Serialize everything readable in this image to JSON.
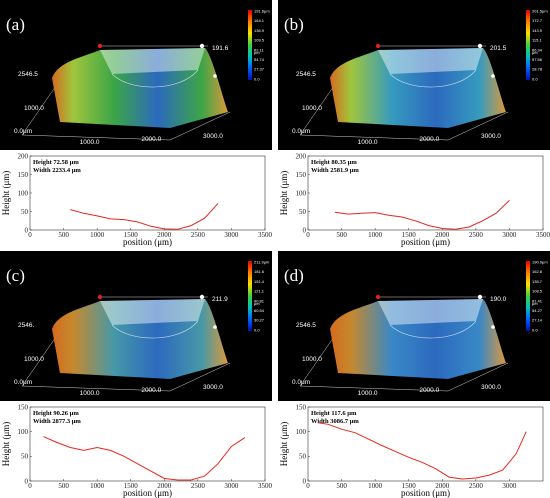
{
  "panels": [
    {
      "id": "a",
      "label": "(a)",
      "surface": {
        "z_max_label": "191.6",
        "y_depth_label": "2546.5",
        "y_mid_label": "1000.0",
        "origin_label": "0.0μm",
        "x_labels": [
          "1000.0",
          "2000.0",
          "3000.0"
        ],
        "x_label_values": [
          1000,
          2000,
          3000
        ],
        "colorbar_ticks": [
          "191.6μm",
          "164.1",
          "136.9",
          "109.5",
          "82.11",
          "54.74",
          "27.37",
          "0.0"
        ],
        "colorbar_unit": "μm",
        "sweep_color": "#3fae4a"
      },
      "annotation": {
        "height": "Height 72.58 μm",
        "width": "Width 2233.4 μm"
      },
      "chart_data": {
        "type": "line",
        "xlabel": "position (μm)",
        "ylabel": "Height (μm)",
        "xlim": [
          0,
          3500
        ],
        "ylim": [
          0,
          200
        ],
        "xticks": [
          0,
          500,
          1000,
          1500,
          2000,
          2500,
          3000,
          3500
        ],
        "yticks": [
          0,
          50,
          100,
          150,
          200
        ],
        "line_color": "#e8261d",
        "x": [
          600,
          800,
          1000,
          1200,
          1400,
          1600,
          1800,
          2000,
          2200,
          2400,
          2600,
          2800
        ],
        "y": [
          55,
          45,
          38,
          30,
          28,
          22,
          10,
          3,
          2,
          12,
          32,
          72
        ]
      }
    },
    {
      "id": "b",
      "label": "(b)",
      "surface": {
        "z_max_label": "201.5",
        "y_depth_label": "2546.5",
        "y_mid_label": "1000.0",
        "origin_label": "0.0μm",
        "x_labels": [
          "1000.0",
          "2000.0",
          "3000.0"
        ],
        "x_label_values": [
          1000,
          2000,
          3000
        ],
        "colorbar_ticks": [
          "201.5μm",
          "172.7",
          "143.9",
          "115.1",
          "86.34",
          "57.56",
          "28.78",
          "0.0"
        ],
        "colorbar_unit": "μm",
        "sweep_color": "#39a3c8"
      },
      "annotation": {
        "height": "Height 80.35 μm",
        "width": "Width 2581.9 μm"
      },
      "chart_data": {
        "type": "line",
        "xlabel": "position (μm)",
        "ylabel": "Height (μm)",
        "xlim": [
          0,
          3500
        ],
        "ylim": [
          0,
          200
        ],
        "xticks": [
          0,
          500,
          1000,
          1500,
          2000,
          2500,
          3000,
          3500
        ],
        "yticks": [
          0,
          50,
          100,
          150,
          200
        ],
        "line_color": "#e8261d",
        "x": [
          400,
          600,
          800,
          1000,
          1200,
          1400,
          1600,
          1800,
          2000,
          2200,
          2400,
          2600,
          2800,
          3000
        ],
        "y": [
          48,
          43,
          45,
          47,
          40,
          35,
          25,
          12,
          4,
          2,
          8,
          25,
          45,
          80
        ]
      }
    },
    {
      "id": "c",
      "label": "(c)",
      "surface": {
        "z_max_label": "211.9",
        "y_depth_label": "2546.",
        "y_mid_label": "1000.0",
        "origin_label": "0.0μm",
        "x_labels": [
          "1000.0",
          "2000.0",
          "3000.0"
        ],
        "x_label_values": [
          1000,
          2000,
          3000
        ],
        "colorbar_ticks": [
          "211.9μm",
          "181.6",
          "151.4",
          "121.1",
          "90.81",
          "60.54",
          "30.27",
          "0.0"
        ],
        "colorbar_unit": "μm",
        "sweep_color": "#4aa0b0"
      },
      "annotation": {
        "height": "Height 90.26 μm",
        "width": "Width 2877.3 μm"
      },
      "chart_data": {
        "type": "line",
        "xlabel": "position (μm)",
        "ylabel": "Height (μm)",
        "xlim": [
          0,
          3500
        ],
        "ylim": [
          0,
          150
        ],
        "xticks": [
          0,
          500,
          1000,
          1500,
          2000,
          2500,
          3000,
          3500
        ],
        "yticks": [
          0,
          50,
          100,
          150
        ],
        "line_color": "#e8261d",
        "x": [
          200,
          400,
          600,
          800,
          1000,
          1200,
          1400,
          1600,
          1800,
          2000,
          2200,
          2400,
          2600,
          2800,
          3000,
          3200
        ],
        "y": [
          90,
          78,
          68,
          62,
          68,
          62,
          50,
          35,
          20,
          5,
          2,
          2,
          10,
          35,
          70,
          88
        ]
      }
    },
    {
      "id": "d",
      "label": "(d)",
      "surface": {
        "z_max_label": "190.0",
        "y_depth_label": "2546.5",
        "y_mid_label": "1000.0",
        "origin_label": "0.0μm",
        "x_labels": [
          "1000.0",
          "2000.0",
          "3000.0"
        ],
        "x_label_values": [
          1000,
          2000,
          3000
        ],
        "colorbar_ticks": [
          "190.0μm",
          "162.8",
          "135.7",
          "108.5",
          "81.41",
          "54.27",
          "27.14",
          "0.0"
        ],
        "colorbar_unit": "μm",
        "sweep_color": "#3c8fd0"
      },
      "annotation": {
        "height": "Height 117.6 μm",
        "width": "Width 3086.7 μm"
      },
      "chart_data": {
        "type": "line",
        "xlabel": "position (μm)",
        "ylabel": "Height (μm)",
        "xlim": [
          0,
          3500
        ],
        "ylim": [
          0,
          150
        ],
        "xticks": [
          0,
          500,
          1000,
          1500,
          2000,
          2500,
          3000
        ],
        "yticks": [
          0,
          50,
          100,
          150
        ],
        "line_color": "#e8261d",
        "x": [
          150,
          300,
          500,
          700,
          900,
          1100,
          1300,
          1500,
          1700,
          1900,
          2100,
          2300,
          2500,
          2700,
          2900,
          3100,
          3250
        ],
        "y": [
          118,
          115,
          105,
          98,
          85,
          72,
          60,
          48,
          38,
          25,
          8,
          4,
          6,
          12,
          22,
          55,
          100
        ]
      }
    }
  ]
}
